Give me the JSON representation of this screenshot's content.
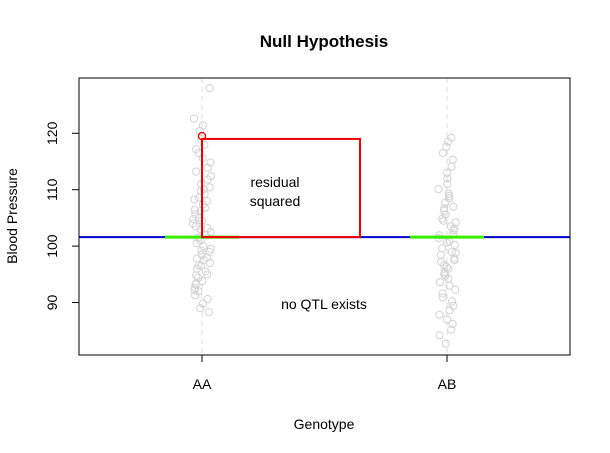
{
  "chart_data": {
    "type": "scatter",
    "title": "Null Hypothesis",
    "xlabel": "Genotype",
    "ylabel": "Blood Pressure",
    "categories": [
      "AA",
      "AB"
    ],
    "ylim": [
      80.7,
      129.8
    ],
    "yticks": [
      90,
      100,
      110,
      120
    ],
    "grand_mean": 101.6,
    "group_means": {
      "AA": 101.6,
      "AB": 101.6
    },
    "highlighted_point": {
      "category": "AA",
      "y": 119.5
    },
    "residual_square": {
      "from_y": 101.6,
      "to_y": 119.0
    },
    "annotations": [
      {
        "lines": [
          "residual",
          "squared"
        ]
      },
      {
        "lines": [
          "no QTL exists"
        ]
      }
    ],
    "series": [
      {
        "category": "AA",
        "values": [
          128.0,
          122.6,
          121.4,
          120.4,
          119.0,
          118.0,
          117.2,
          116.5,
          115.6,
          114.8,
          113.9,
          113.2,
          112.4,
          111.8,
          111.0,
          110.4,
          109.8,
          109.2,
          108.6,
          108.0,
          107.4,
          106.8,
          106.2,
          105.6,
          105.0,
          104.5,
          104.0,
          103.5,
          103.0,
          102.5,
          102.0,
          101.5,
          101.0,
          100.5,
          100.0,
          99.5,
          99.0,
          98.5,
          98.0,
          97.5,
          97.0,
          96.5,
          96.0,
          95.5,
          95.0,
          94.4,
          93.8,
          93.2,
          92.6,
          92.0,
          91.3,
          90.6,
          89.8,
          89.0,
          88.3,
          99.2,
          97.8,
          96.6,
          94.8,
          93.4,
          92.2,
          103.2,
          104.8,
          106.4,
          108.3,
          110.1
        ]
      },
      {
        "category": "AB",
        "values": [
          119.2,
          118.5,
          117.6,
          116.5,
          115.3,
          114.1,
          113.0,
          112.0,
          111.0,
          110.1,
          109.3,
          108.5,
          107.7,
          107.0,
          106.3,
          105.6,
          104.9,
          104.2,
          103.5,
          102.8,
          102.1,
          101.4,
          100.8,
          100.2,
          99.6,
          99.0,
          98.4,
          97.8,
          97.2,
          96.6,
          96.0,
          95.4,
          94.8,
          94.2,
          93.6,
          93.0,
          92.3,
          91.6,
          90.9,
          90.2,
          89.4,
          88.6,
          87.8,
          87.0,
          86.2,
          85.2,
          84.2,
          82.7,
          98.8,
          97.5,
          96.3,
          95.1,
          100.6,
          101.9,
          103.1,
          104.5,
          106.7,
          108.9
        ]
      }
    ]
  }
}
